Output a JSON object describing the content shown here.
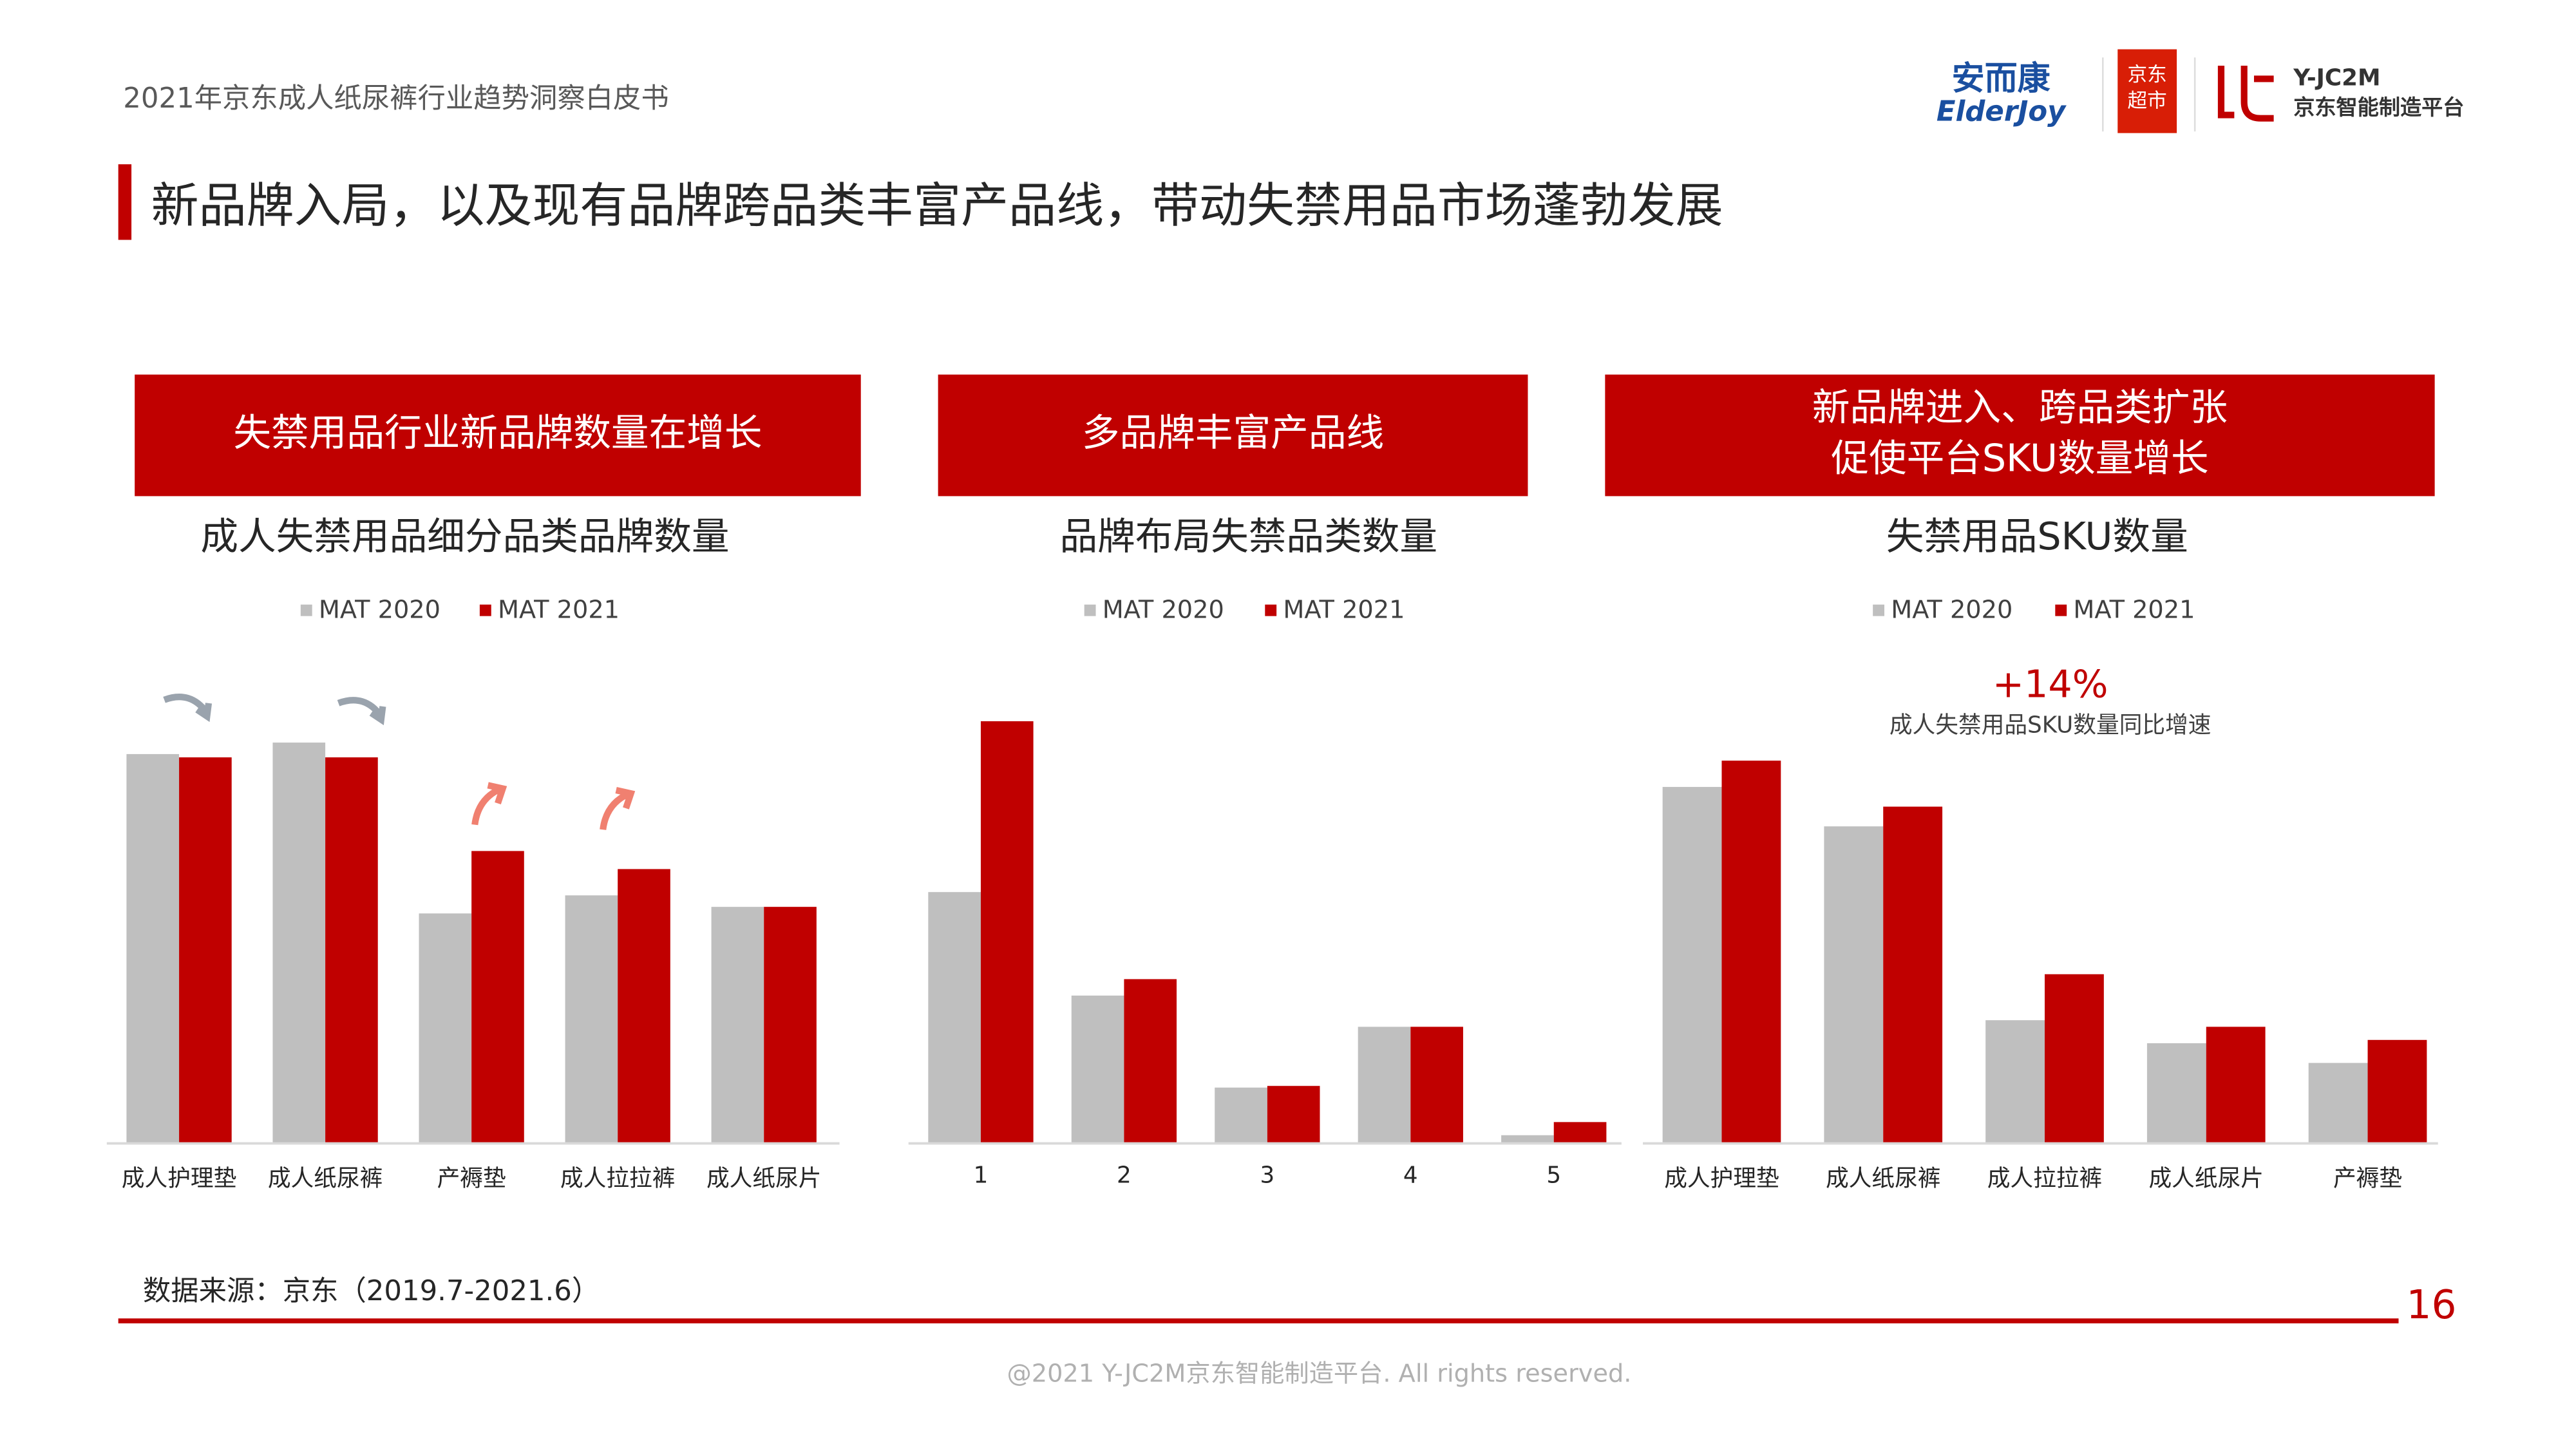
{
  "header": {
    "report_title": "2021年京东成人纸尿裤行业趋势洞察白皮书",
    "logos": [
      "安而康",
      "ElderJoy",
      "京东",
      "超市",
      "Y-JC2M",
      "京东智能制造平台"
    ]
  },
  "headline": "新品牌入局，以及现有品牌跨品类丰富产品线，带动失禁用品市场蓬勃发展",
  "chart_data": [
    {
      "type": "bar",
      "banner": [
        "失禁用品行业新品牌数量在增长"
      ],
      "title": "成人失禁用品细分品类品牌数量",
      "categories": [
        "成人护理垫",
        "成人纸尿裤",
        "产褥垫",
        "成人拉拉裤",
        "成人纸尿片"
      ],
      "series": [
        {
          "name": "MAT 2020",
          "color": "#bfbfbf",
          "values": [
            237,
            244,
            140,
            151,
            144
          ]
        },
        {
          "name": "MAT 2021",
          "color": "#c00000",
          "values": [
            235,
            235,
            178,
            167,
            144
          ]
        }
      ]
    },
    {
      "type": "bar",
      "banner": [
        "多品牌丰富产品线"
      ],
      "title": "品牌布局失禁品类数量",
      "categories": [
        "1",
        "2",
        "3",
        "4",
        "5"
      ],
      "series": [
        {
          "name": "MAT 2020",
          "color": "#bfbfbf",
          "values": [
            153,
            90,
            34,
            71,
            5
          ]
        },
        {
          "name": "MAT 2021",
          "color": "#c00000",
          "values": [
            257,
            100,
            35,
            71,
            13
          ]
        }
      ]
    },
    {
      "type": "bar",
      "banner": [
        "新品牌进入、跨品类扩张",
        "促使平台SKU数量增长"
      ],
      "title": "失禁用品SKU数量",
      "annotations": [
        "+14%",
        "成人失禁用品SKU数量同比增速"
      ],
      "categories": [
        "成人护理垫",
        "成人纸尿裤",
        "成人拉拉裤",
        "成人纸尿片",
        "产褥垫"
      ],
      "series": [
        {
          "name": "MAT 2020",
          "color": "#bfbfbf",
          "values": [
            217,
            193,
            75,
            61,
            49
          ]
        },
        {
          "name": "MAT 2021",
          "color": "#c00000",
          "values": [
            233,
            205,
            103,
            71,
            63
          ]
        }
      ]
    }
  ],
  "footer": {
    "source": "数据来源：京东（2019.7-2021.6）",
    "page": "16",
    "copyright": "@2021 Y-JC2M京东智能制造平台. All rights reserved."
  }
}
